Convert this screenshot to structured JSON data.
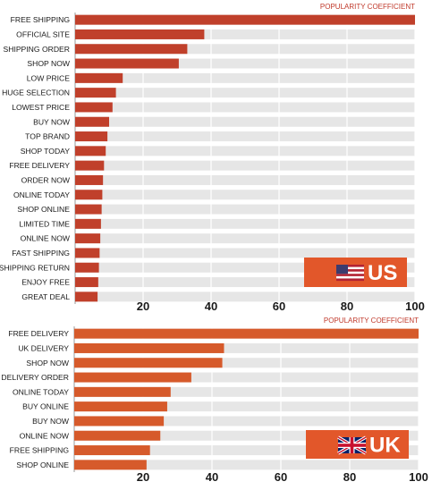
{
  "colors": {
    "us_bar": "#c0402b",
    "uk_bar": "#d65a2b",
    "track": "#e6e6e6",
    "badge": "#e2572a",
    "axis_title": "#c0392b"
  },
  "chart_data": [
    {
      "type": "bar",
      "orientation": "horizontal",
      "badge": "US",
      "badge_icon": "us-flag-icon",
      "xlabel": "POPULARITY COEFFICIENT",
      "xlim": [
        0,
        100
      ],
      "xticks": [
        20,
        40,
        60,
        80,
        100
      ],
      "grid": true,
      "categories": [
        "FREE SHIPPING",
        "OFFICIAL SITE",
        "SHIPPING ORDER",
        "SHOP NOW",
        "LOW PRICE",
        "HUGE SELECTION",
        "LOWEST PRICE",
        "BUY NOW",
        "TOP BRAND",
        "SHOP TODAY",
        "FREE DELIVERY",
        "ORDER NOW",
        "ONLINE TODAY",
        "SHOP ONLINE",
        "LIMITED TIME",
        "ONLINE NOW",
        "FAST SHIPPING",
        "SHIPPING RETURN",
        "ENJOY FREE",
        "GREAT DEAL"
      ],
      "values": [
        100,
        38,
        33,
        30.5,
        14,
        12,
        11,
        10,
        9.5,
        9,
        8.5,
        8.2,
        8,
        7.8,
        7.6,
        7.4,
        7.2,
        7,
        6.8,
        6.6
      ]
    },
    {
      "type": "bar",
      "orientation": "horizontal",
      "badge": "UK",
      "badge_icon": "uk-flag-icon",
      "xlabel": "POPULARITY COEFFICIENT",
      "xlim": [
        0,
        100
      ],
      "xticks": [
        20,
        40,
        60,
        80,
        100
      ],
      "grid": true,
      "categories": [
        "FREE DELIVERY",
        "UK DELIVERY",
        "SHOP NOW",
        "DELIVERY ORDER",
        "ONLINE TODAY",
        "BUY ONLINE",
        "BUY NOW",
        "ONLINE NOW",
        "FREE SHIPPING",
        "SHOP ONLINE"
      ],
      "values": [
        100,
        43.5,
        43,
        34,
        28,
        27,
        26,
        25,
        22,
        21
      ]
    }
  ]
}
